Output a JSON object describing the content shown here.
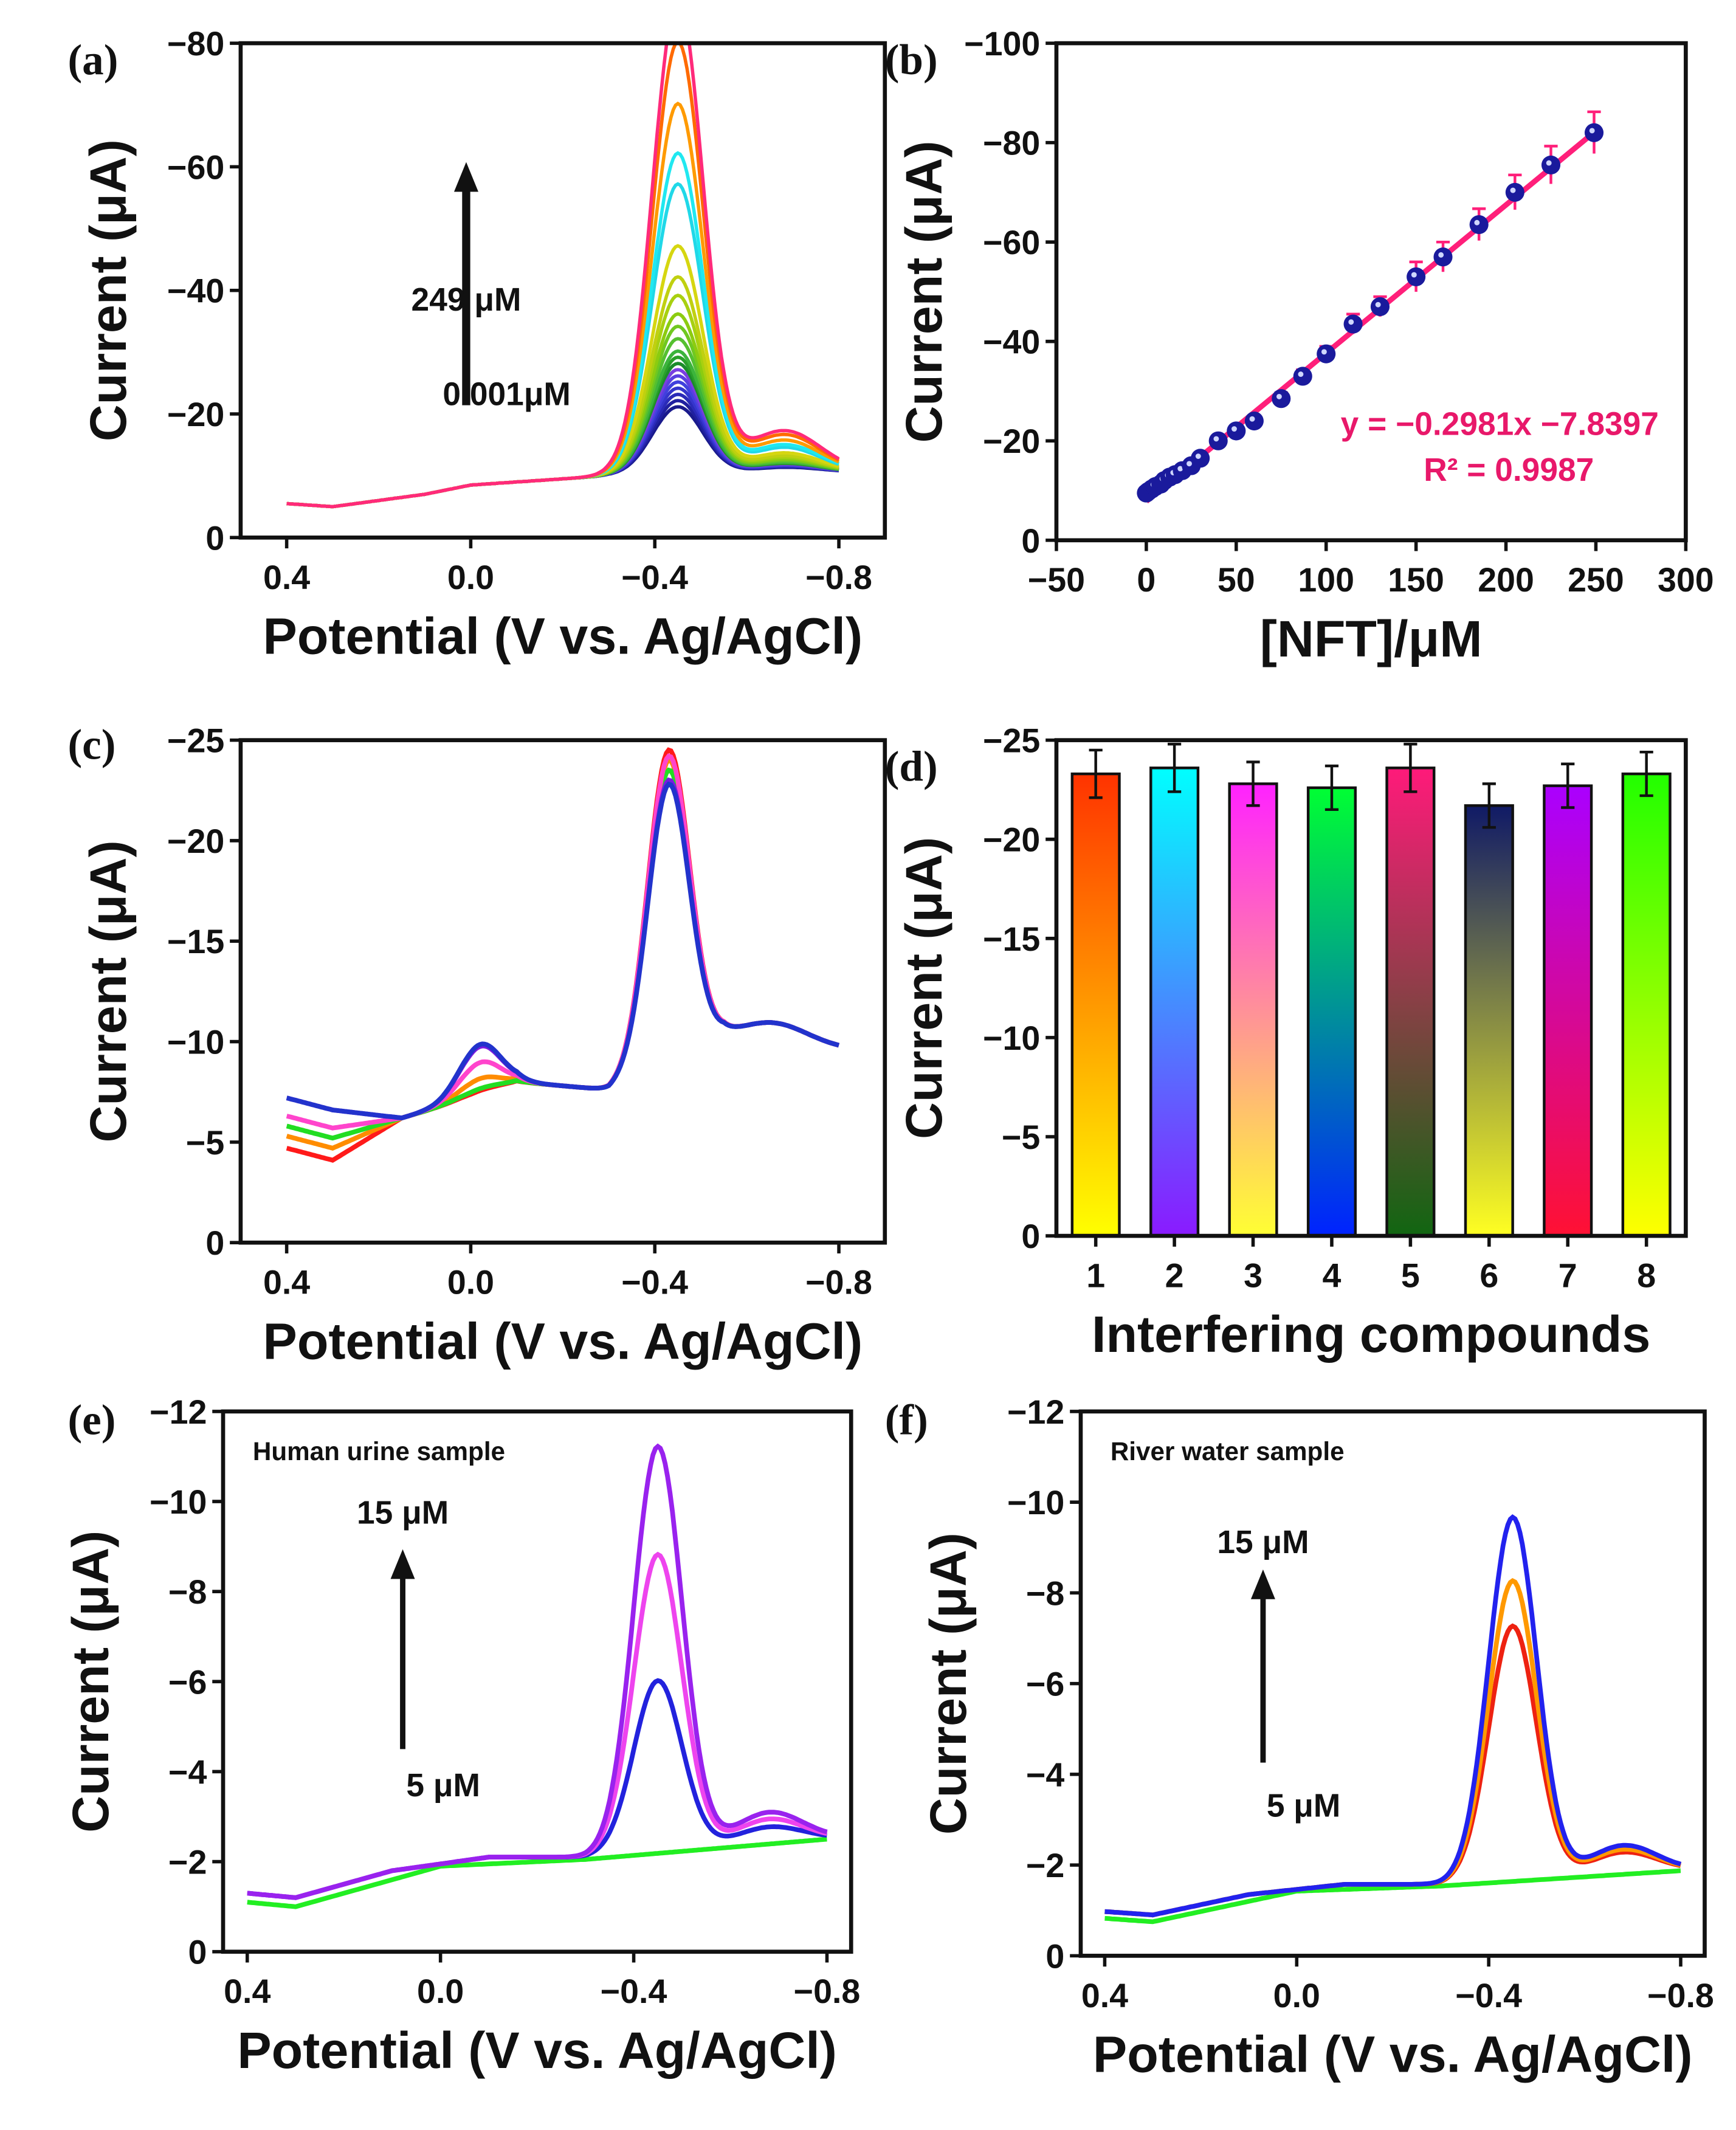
{
  "chart_data": [
    {
      "id": "a",
      "type": "line",
      "panel_label": "(a)",
      "xlabel": "Potential (V vs. Ag/AgCl)",
      "ylabel": "Current (μA)",
      "xlim": [
        0.5,
        -0.9
      ],
      "ylim": [
        0,
        -80
      ],
      "xticks": [
        0.4,
        0.0,
        -0.4,
        -0.8
      ],
      "xtick_labels": [
        "0.4",
        "0.0",
        "−0.4",
        "−0.8"
      ],
      "yticks": [
        0,
        -20,
        -40,
        -60,
        -80
      ],
      "ytick_labels": [
        "0",
        "−20",
        "−40",
        "−60",
        "−80"
      ],
      "annotations": {
        "top": "249 μM",
        "bottom": "0.001μM"
      },
      "baseline": [
        [
          0.4,
          -5.5
        ],
        [
          0.3,
          -5
        ],
        [
          0.1,
          -7
        ],
        [
          0.0,
          -8.5
        ],
        [
          -0.2,
          -9.5
        ],
        [
          -0.3,
          -10
        ],
        [
          -0.8,
          -10.5
        ]
      ],
      "peak_potential": -0.45,
      "series": [
        {
          "peak": -11,
          "color": "#1a1a8c"
        },
        {
          "peak": -12,
          "color": "#2020a0"
        },
        {
          "peak": -13,
          "color": "#2a2ab8"
        },
        {
          "peak": -14,
          "color": "#3535cc"
        },
        {
          "peak": -15,
          "color": "#4040dd"
        },
        {
          "peak": -16,
          "color": "#5a3fe0"
        },
        {
          "peak": -17,
          "color": "#7a3fe0"
        },
        {
          "peak": -18,
          "color": "#1b8c2a"
        },
        {
          "peak": -19,
          "color": "#2aa02a"
        },
        {
          "peak": -20,
          "color": "#3cb43c"
        },
        {
          "peak": -22,
          "color": "#55c030"
        },
        {
          "peak": -24,
          "color": "#70c820"
        },
        {
          "peak": -26,
          "color": "#8ccc10"
        },
        {
          "peak": -29,
          "color": "#a8d010"
        },
        {
          "peak": -32,
          "color": "#c0d010"
        },
        {
          "peak": -37,
          "color": "#d6d610"
        },
        {
          "peak": -47,
          "color": "#20d8e8"
        },
        {
          "peak": -52,
          "color": "#20e8f0"
        },
        {
          "peak": -60,
          "color": "#ff9a00"
        },
        {
          "peak": -70,
          "color": "#ff6a00"
        },
        {
          "peak": -77,
          "color": "#ff2a7a"
        }
      ]
    },
    {
      "id": "b",
      "type": "scatter",
      "panel_label": "(b)",
      "xlabel": "[NFT]/μM",
      "ylabel": "Current (μA)",
      "xlim": [
        -50,
        300
      ],
      "ylim": [
        0,
        -100
      ],
      "xticks": [
        -50,
        0,
        50,
        100,
        150,
        200,
        250,
        300
      ],
      "xtick_labels": [
        "−50",
        "0",
        "50",
        "100",
        "150",
        "200",
        "250",
        "300"
      ],
      "yticks": [
        0,
        -20,
        -40,
        -60,
        -80,
        -100
      ],
      "ytick_labels": [
        "0",
        "−20",
        "−40",
        "−60",
        "−80",
        "−100"
      ],
      "equation": "y = −0.2981x −7.8397",
      "r2": "R² = 0.9987",
      "fit": {
        "slope": -0.2981,
        "intercept": -7.8397
      },
      "x": [
        0.001,
        1,
        3,
        5,
        8,
        10,
        13,
        16,
        20,
        25,
        30,
        40,
        50,
        60,
        75,
        87,
        100,
        115,
        130,
        150,
        165,
        185,
        205,
        225,
        249
      ],
      "y": [
        -9.5,
        -9.8,
        -10.3,
        -10.8,
        -11.3,
        -12,
        -12.7,
        -13.2,
        -14,
        -15,
        -16.5,
        -20,
        -22,
        -24,
        -28.5,
        -33,
        -37.5,
        -43.5,
        -47,
        -53,
        -57,
        -63.5,
        -70,
        -75.5,
        -82
      ],
      "yerr": [
        0.5,
        0.5,
        0.5,
        0.5,
        0.5,
        0.6,
        0.6,
        0.6,
        0.7,
        0.8,
        0.8,
        0.9,
        1,
        1,
        1.2,
        1.3,
        1.5,
        2,
        2,
        3,
        3,
        3.2,
        3.5,
        3.8,
        4.2
      ],
      "marker_color": "#1a1a9c",
      "line_color": "#ff1f7a"
    },
    {
      "id": "c",
      "type": "line",
      "panel_label": "(c)",
      "xlabel": "Potential (V vs. Ag/AgCl)",
      "ylabel": "Current (μA)",
      "xlim": [
        0.5,
        -0.9
      ],
      "ylim": [
        0,
        -25
      ],
      "xticks": [
        0.4,
        0.0,
        -0.4,
        -0.8
      ],
      "xtick_labels": [
        "0.4",
        "0.0",
        "−0.4",
        "−0.8"
      ],
      "yticks": [
        0,
        -5,
        -10,
        -15,
        -20,
        -25
      ],
      "ytick_labels": [
        "0",
        "−5",
        "−10",
        "−15",
        "−20",
        "−25"
      ],
      "peak_potential": -0.43,
      "series": [
        {
          "peak": -23.5,
          "bump": -0.2,
          "start": -4.7,
          "color": "#ff1a1a"
        },
        {
          "peak": -23.0,
          "bump": -0.8,
          "start": -5.3,
          "color": "#ff8c00"
        },
        {
          "peak": -22.5,
          "bump": -0.3,
          "start": -5.8,
          "color": "#22dd22"
        },
        {
          "peak": -23.2,
          "bump": -1.6,
          "start": -6.3,
          "color": "#ff44cc"
        },
        {
          "peak": -22.0,
          "bump": -2.4,
          "start": -7.2,
          "color": "#7a1ae0"
        },
        {
          "peak": -21.8,
          "bump": -2.5,
          "start": -7.2,
          "color": "#2233cc"
        }
      ]
    },
    {
      "id": "d",
      "type": "bar",
      "panel_label": "(d)",
      "xlabel": "Interfering compounds",
      "ylabel": "Current (μA)",
      "ylim": [
        0,
        -25
      ],
      "yticks": [
        0,
        -5,
        -10,
        -15,
        -20,
        -25
      ],
      "ytick_labels": [
        "0",
        "−5",
        "−10",
        "−15",
        "−20",
        "−25"
      ],
      "categories": [
        "1",
        "2",
        "3",
        "4",
        "5",
        "6",
        "7",
        "8"
      ],
      "values": [
        -23.3,
        -23.6,
        -22.8,
        -22.6,
        -23.6,
        -21.7,
        -22.7,
        -23.3
      ],
      "errors": [
        1.2,
        1.2,
        1.1,
        1.1,
        1.2,
        1.1,
        1.1,
        1.1
      ],
      "gradients": [
        [
          "#ff3300",
          "#ffff00"
        ],
        [
          "#00ffff",
          "#8a1aff"
        ],
        [
          "#ff22ff",
          "#ffff33"
        ],
        [
          "#00ff33",
          "#0022ff"
        ],
        [
          "#ff1a7a",
          "#116611"
        ],
        [
          "#101a66",
          "#ffff22"
        ],
        [
          "#aa00ff",
          "#ff1133"
        ],
        [
          "#22ff00",
          "#ffff00"
        ]
      ]
    },
    {
      "id": "e",
      "type": "line",
      "panel_label": "(e)",
      "sample_label": "Human urine sample",
      "xlabel": "Potential (V vs. Ag/AgCl)",
      "ylabel": "Current (μA)",
      "xlim": [
        0.45,
        -0.85
      ],
      "ylim": [
        0,
        -12
      ],
      "xticks": [
        0.4,
        0.0,
        -0.4,
        -0.8
      ],
      "xtick_labels": [
        "0.4",
        "0.0",
        "−0.4",
        "−0.8"
      ],
      "yticks": [
        0,
        -2,
        -4,
        -6,
        -8,
        -10,
        -12
      ],
      "ytick_labels": [
        "0",
        "−2",
        "−4",
        "−6",
        "−8",
        "−10",
        "−12"
      ],
      "annotations": {
        "top": "15 μM",
        "bottom": "5 μM"
      },
      "peak_potential": -0.45,
      "series": [
        {
          "peak": 0,
          "color": "#22ee22"
        },
        {
          "peak": -5.9,
          "color": "#2222dd"
        },
        {
          "peak": -8.7,
          "color": "#ee44ee"
        },
        {
          "peak": -11.1,
          "color": "#9922ee"
        }
      ]
    },
    {
      "id": "f",
      "type": "line",
      "panel_label": "(f)",
      "sample_label": "River water sample",
      "xlabel": "Potential (V vs. Ag/AgCl)",
      "ylabel": "Current (μA)",
      "xlim": [
        0.45,
        -0.85
      ],
      "ylim": [
        0,
        -12
      ],
      "xticks": [
        0.4,
        0.0,
        -0.4,
        -0.8
      ],
      "xtick_labels": [
        "0.4",
        "0.0",
        "−0.4",
        "−0.8"
      ],
      "yticks": [
        0,
        -2,
        -4,
        -6,
        -8,
        -10,
        -12
      ],
      "ytick_labels": [
        "0",
        "−2",
        "−4",
        "−6",
        "−8",
        "−10",
        "−12"
      ],
      "annotations": {
        "top": "15 μM",
        "bottom": "5 μM"
      },
      "peak_potential": -0.45,
      "series": [
        {
          "peak": 0,
          "color": "#22ee22"
        },
        {
          "peak": -7.7,
          "color": "#ee2211"
        },
        {
          "peak": -8.7,
          "color": "#ff9900"
        },
        {
          "peak": -10.1,
          "color": "#2222ee"
        }
      ]
    }
  ]
}
